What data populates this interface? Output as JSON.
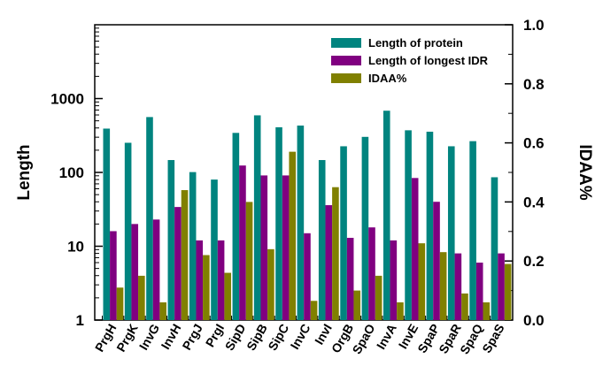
{
  "chart_data": {
    "type": "bar",
    "categories": [
      "PrgH",
      "PrgK",
      "InvG",
      "InvH",
      "PrgJ",
      "PrgI",
      "SipD",
      "SipB",
      "SipC",
      "InvC",
      "InvI",
      "OrgB",
      "SpaO",
      "InvA",
      "InvE",
      "SpaP",
      "SpaR",
      "SpaQ",
      "SpaS"
    ],
    "series": [
      {
        "name": "Length of protein",
        "axis": "left",
        "color": "#00847f",
        "values": [
          392,
          252,
          562,
          147,
          101,
          80,
          343,
          593,
          409,
          431,
          147,
          226,
          303,
          685,
          372,
          356,
          226,
          265,
          86
        ]
      },
      {
        "name": "Length of longest IDR",
        "axis": "left",
        "color": "#800080",
        "values": [
          16,
          20,
          23,
          34,
          12,
          12,
          124,
          91,
          91,
          15,
          36,
          13,
          18,
          12,
          84,
          40,
          8,
          6,
          8
        ]
      },
      {
        "name": "IDAA%",
        "axis": "right",
        "color": "#808000",
        "values": [
          0.11,
          0.15,
          0.06,
          0.44,
          0.22,
          0.16,
          0.4,
          0.24,
          0.57,
          0.065,
          0.45,
          0.1,
          0.15,
          0.06,
          0.26,
          0.23,
          0.09,
          0.06,
          0.19
        ]
      }
    ],
    "left_axis": {
      "label": "Length",
      "scale": "log",
      "ylim": [
        1,
        10000
      ],
      "ticks": [
        1,
        10,
        100,
        1000
      ],
      "tick_labels": [
        "1",
        "10",
        "100",
        "1000"
      ]
    },
    "right_axis": {
      "label": "IDAA%",
      "scale": "linear",
      "ylim": [
        0,
        1.0
      ],
      "ticks": [
        0,
        0.2,
        0.4,
        0.6,
        0.8,
        1.0
      ],
      "tick_labels": [
        "0.0",
        "0.2",
        "0.4",
        "0.6",
        "0.8",
        "1.0"
      ]
    },
    "legend": {
      "position": "top-right",
      "entries": [
        "Length of protein",
        "Length of longest IDR",
        "IDAA%"
      ]
    },
    "grid": false
  }
}
